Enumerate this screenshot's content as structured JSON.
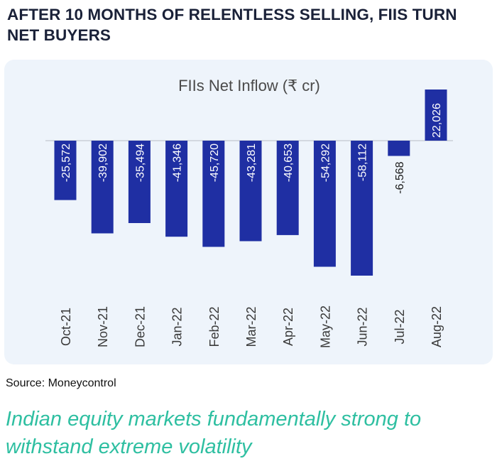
{
  "headline": "AFTER 10 MONTHS OF RELENTLESS SELLING, FIIS TURN NET BUYERS",
  "source": "Source: Moneycontrol",
  "subheadline": "Indian equity markets fundamentally strong to withstand extreme volatility",
  "colors": {
    "bar": "#1f2fa3",
    "card_background": "#eef4fb",
    "headline": "#1a2138",
    "subheadline": "#2ebfa1"
  },
  "chart_data": {
    "type": "bar",
    "title": "FIIs Net Inflow (₹ cr)",
    "xlabel": "",
    "ylabel": "",
    "grid": false,
    "legend": "none",
    "ylim": [
      -60000,
      25000
    ],
    "categories": [
      "Oct-21",
      "Nov-21",
      "Dec-21",
      "Jan-22",
      "Feb-22",
      "Mar-22",
      "Apr-22",
      "May-22",
      "Jun-22",
      "Jul-22",
      "Aug-22"
    ],
    "values": [
      -25572,
      -39902,
      -35494,
      -41346,
      -45720,
      -43281,
      -40653,
      -54292,
      -58112,
      -6568,
      22026
    ],
    "data_labels": [
      "-25,572",
      "-39,902",
      "-35,494",
      "-41,346",
      "-45,720",
      "-43,281",
      "-40,653",
      "-54,292",
      "-58,112",
      "-6,568",
      "22,026"
    ]
  }
}
